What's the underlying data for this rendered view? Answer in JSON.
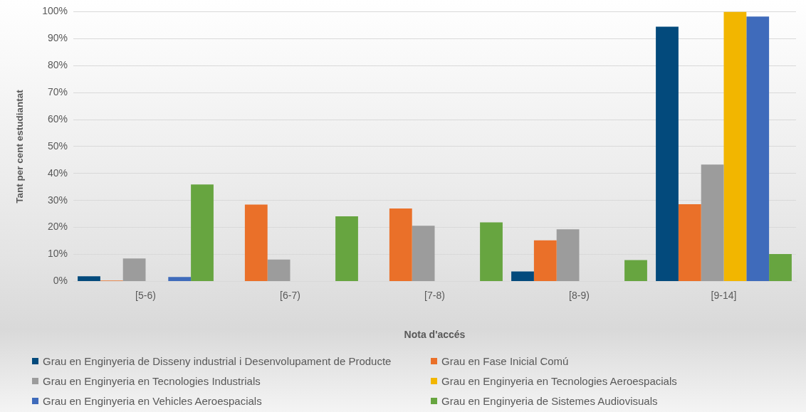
{
  "chart_data": {
    "type": "bar",
    "xlabel": "Nota d'accés",
    "ylabel": "Tant per cent estudiantat",
    "categories": [
      "[5-6)",
      "[6-7)",
      "[7-8)",
      "[8-9)",
      "[9-14]"
    ],
    "series": [
      {
        "name": "Grau en Enginyeria de Disseny industrial i Desenvolupament de Producte",
        "color": "#034a7c",
        "values": [
          1.9,
          0,
          0,
          3.7,
          94.4
        ]
      },
      {
        "name": "Grau en Fase Inicial Comú",
        "color": "#ea7029",
        "values": [
          0.3,
          28.5,
          27,
          15.2,
          28.6
        ]
      },
      {
        "name": "Grau en Enginyeria en Tecnologies Industrials",
        "color": "#9c9c9c",
        "values": [
          8.5,
          8.1,
          20.6,
          19.3,
          43.3
        ]
      },
      {
        "name": "Grau en Enginyeria en Tecnologies Aeroespacials",
        "color": "#f2b600",
        "values": [
          0,
          0,
          0,
          0,
          100
        ]
      },
      {
        "name": "Grau en Enginyeria en Vehicles Aeroespacials",
        "color": "#3f6bbb",
        "values": [
          1.6,
          0,
          0,
          0,
          98.2
        ]
      },
      {
        "name": "Grau en Enginyeria de Sistemes Audiovisuals",
        "color": "#67a540",
        "values": [
          35.9,
          24.1,
          21.9,
          7.9,
          10.1
        ]
      }
    ],
    "ylim": [
      0,
      100
    ],
    "yticks": [
      {
        "value": 0,
        "label": "0%"
      },
      {
        "value": 10,
        "label": "10%"
      },
      {
        "value": 20,
        "label": "20%"
      },
      {
        "value": 30,
        "label": "30%"
      },
      {
        "value": 40,
        "label": "40%"
      },
      {
        "value": 50,
        "label": "50%"
      },
      {
        "value": 60,
        "label": "60%"
      },
      {
        "value": 70,
        "label": "70%"
      },
      {
        "value": 80,
        "label": "80%"
      },
      {
        "value": 90,
        "label": "90%"
      },
      {
        "value": 100,
        "label": "100%"
      }
    ],
    "grid": "y",
    "legend": "bottom"
  }
}
